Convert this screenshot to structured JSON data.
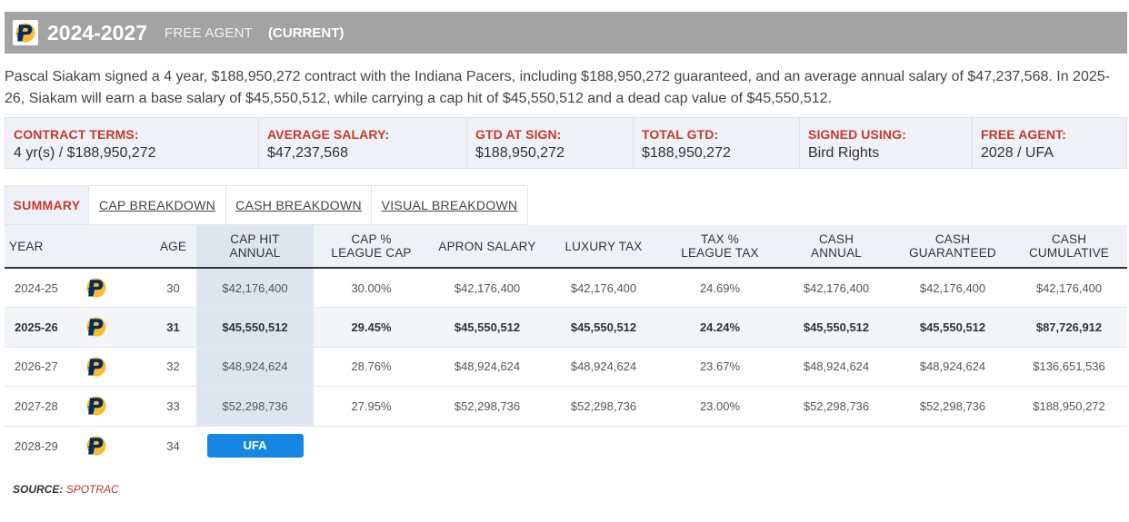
{
  "header": {
    "years": "2024-2027",
    "type": "FREE AGENT",
    "status": "(CURRENT)",
    "logo_icon": "pacers-logo-icon"
  },
  "summary": "Pascal Siakam signed a 4 year, $188,950,272 contract with the Indiana Pacers, including $188,950,272 guaranteed, and an average annual salary of $47,237,568. In 2025-26, Siakam will earn a base salary of $45,550,512, while carrying a cap hit of $45,550,512 and a dead cap value of $45,550,512.",
  "terms": [
    {
      "label": "CONTRACT TERMS:",
      "value": "4 yr(s) / $188,950,272"
    },
    {
      "label": "AVERAGE SALARY:",
      "value": "$47,237,568"
    },
    {
      "label": "GTD AT SIGN:",
      "value": "$188,950,272"
    },
    {
      "label": "TOTAL GTD:",
      "value": "$188,950,272"
    },
    {
      "label": "SIGNED USING:",
      "value": "Bird Rights"
    },
    {
      "label": "FREE AGENT:",
      "value": "2028 / UFA"
    }
  ],
  "tabs": [
    "SUMMARY",
    "CAP BREAKDOWN",
    "CASH BREAKDOWN",
    "VISUAL BREAKDOWN"
  ],
  "table": {
    "headers": {
      "year": "YEAR",
      "age": "AGE",
      "cap_hit_1": "CAP HIT",
      "cap_hit_2": "ANNUAL",
      "cap_pct_1": "CAP %",
      "cap_pct_2": "LEAGUE CAP",
      "apron": "APRON SALARY",
      "luxury": "LUXURY TAX",
      "tax_pct_1": "TAX %",
      "tax_pct_2": "LEAGUE TAX",
      "cash_annual_1": "CASH",
      "cash_annual_2": "ANNUAL",
      "cash_gtd_1": "CASH",
      "cash_gtd_2": "GUARANTEED",
      "cash_cum_1": "CASH",
      "cash_cum_2": "CUMULATIVE"
    },
    "rows": [
      {
        "year": "2024-25",
        "age": "30",
        "cap_hit": "$42,176,400",
        "cap_pct": "30.00%",
        "apron": "$42,176,400",
        "luxury": "$42,176,400",
        "tax_pct": "24.69%",
        "cash_annual": "$42,176,400",
        "cash_gtd": "$42,176,400",
        "cash_cum": "$42,176,400"
      },
      {
        "year": "2025-26",
        "age": "31",
        "cap_hit": "$45,550,512",
        "cap_pct": "29.45%",
        "apron": "$45,550,512",
        "luxury": "$45,550,512",
        "tax_pct": "24.24%",
        "cash_annual": "$45,550,512",
        "cash_gtd": "$45,550,512",
        "cash_cum": "$87,726,912"
      },
      {
        "year": "2026-27",
        "age": "32",
        "cap_hit": "$48,924,624",
        "cap_pct": "28.76%",
        "apron": "$48,924,624",
        "luxury": "$48,924,624",
        "tax_pct": "23.67%",
        "cash_annual": "$48,924,624",
        "cash_gtd": "$48,924,624",
        "cash_cum": "$136,651,536"
      },
      {
        "year": "2027-28",
        "age": "33",
        "cap_hit": "$52,298,736",
        "cap_pct": "27.95%",
        "apron": "$52,298,736",
        "luxury": "$52,298,736",
        "tax_pct": "23.00%",
        "cash_annual": "$52,298,736",
        "cash_gtd": "$52,298,736",
        "cash_cum": "$188,950,272"
      }
    ],
    "ufa_row": {
      "year": "2028-29",
      "age": "34",
      "badge": "UFA"
    }
  },
  "source": {
    "label": "SOURCE:",
    "name": "SPOTRAC"
  },
  "colors": {
    "accent": "#c8392e",
    "header_bg": "#a3a3a3",
    "badge": "#1687e0",
    "logo_navy": "#002D62",
    "logo_gold": "#FDBB30"
  }
}
